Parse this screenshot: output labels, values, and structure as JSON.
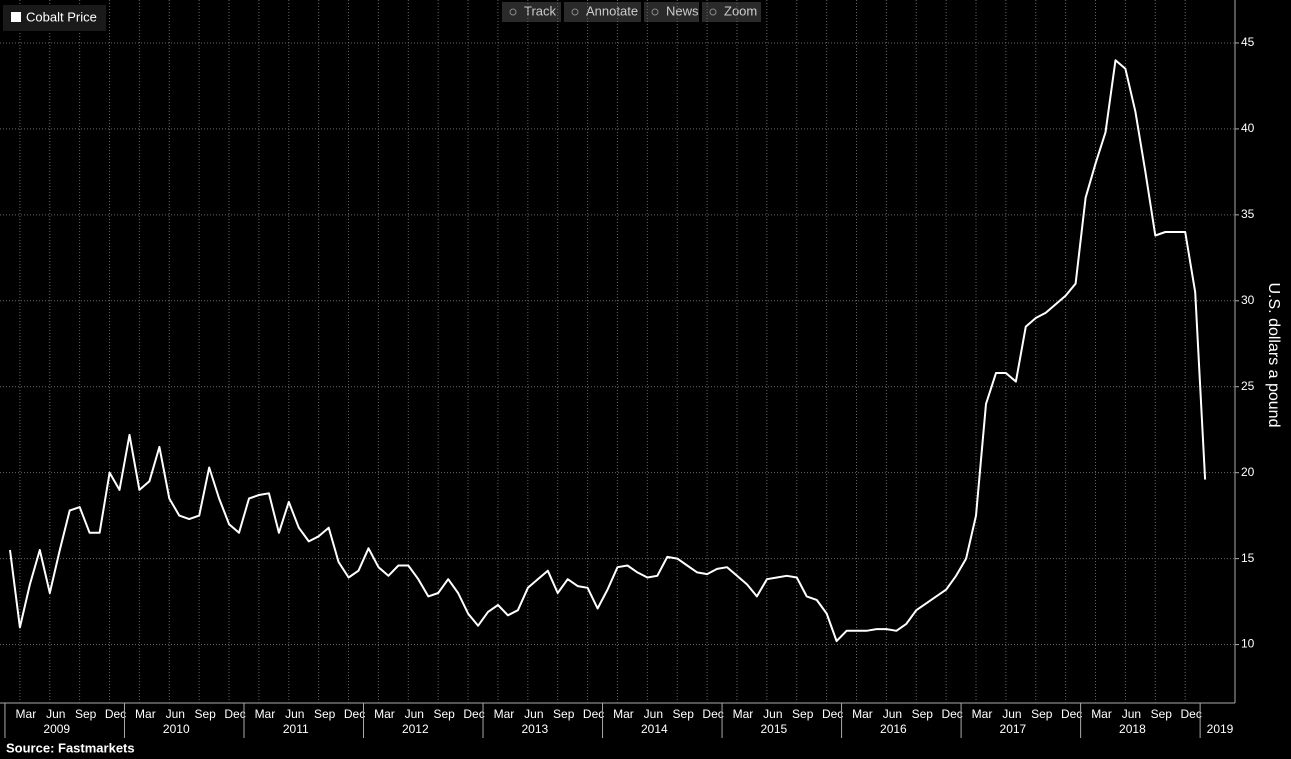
{
  "toolbar": [
    "Track",
    "Annotate",
    "News",
    "Zoom"
  ],
  "source": "Source:  Fastmarkets",
  "chart_data": {
    "type": "line",
    "y_label": "U.S. dollars a pound",
    "legend": "top-left",
    "grid": true,
    "series": [
      {
        "name": "Cobalt Price",
        "color": "#ffffff",
        "values": [
          15.5,
          11.0,
          13.5,
          15.5,
          13.0,
          15.5,
          17.8,
          18.0,
          16.5,
          16.5,
          20.0,
          19.0,
          22.2,
          19.0,
          19.5,
          21.5,
          18.5,
          17.5,
          17.3,
          17.5,
          20.3,
          18.5,
          17.0,
          16.5,
          18.5,
          18.7,
          18.8,
          16.5,
          18.3,
          16.8,
          16.0,
          16.3,
          16.8,
          14.8,
          13.9,
          14.3,
          15.6,
          14.5,
          14.0,
          14.6,
          14.6,
          13.8,
          12.8,
          13.0,
          13.8,
          13.0,
          11.8,
          11.1,
          11.9,
          12.3,
          11.7,
          12.0,
          13.3,
          13.8,
          14.3,
          13.0,
          13.8,
          13.4,
          13.3,
          12.1,
          13.2,
          14.5,
          14.6,
          14.2,
          13.9,
          14.0,
          15.1,
          15.0,
          14.6,
          14.2,
          14.1,
          14.4,
          14.5,
          14.0,
          13.5,
          12.8,
          13.8,
          13.9,
          14.0,
          13.9,
          12.8,
          12.6,
          11.8,
          10.2,
          10.8,
          10.8,
          10.8,
          10.9,
          10.9,
          10.8,
          11.2,
          12.0,
          12.4,
          12.8,
          13.2,
          14.0,
          15.0,
          17.5,
          24.0,
          25.8,
          25.8,
          25.3,
          28.5,
          29.0,
          29.3,
          29.8,
          30.3,
          31.0,
          36.0,
          38.0,
          39.8,
          44.0,
          43.5,
          41.0,
          37.5,
          33.8,
          34.0,
          34.0,
          34.0,
          30.5,
          19.6
        ]
      }
    ],
    "x": [
      "2009-01",
      "2009-02",
      "2009-03",
      "2009-04",
      "2009-05",
      "2009-06",
      "2009-07",
      "2009-08",
      "2009-09",
      "2009-10",
      "2009-11",
      "2009-12",
      "2010-01",
      "2010-02",
      "2010-03",
      "2010-04",
      "2010-05",
      "2010-06",
      "2010-07",
      "2010-08",
      "2010-09",
      "2010-10",
      "2010-11",
      "2010-12",
      "2011-01",
      "2011-02",
      "2011-03",
      "2011-04",
      "2011-05",
      "2011-06",
      "2011-07",
      "2011-08",
      "2011-09",
      "2011-10",
      "2011-11",
      "2011-12",
      "2012-01",
      "2012-02",
      "2012-03",
      "2012-04",
      "2012-05",
      "2012-06",
      "2012-07",
      "2012-08",
      "2012-09",
      "2012-10",
      "2012-11",
      "2012-12",
      "2013-01",
      "2013-02",
      "2013-03",
      "2013-04",
      "2013-05",
      "2013-06",
      "2013-07",
      "2013-08",
      "2013-09",
      "2013-10",
      "2013-11",
      "2013-12",
      "2014-01",
      "2014-02",
      "2014-03",
      "2014-04",
      "2014-05",
      "2014-06",
      "2014-07",
      "2014-08",
      "2014-09",
      "2014-10",
      "2014-11",
      "2014-12",
      "2015-01",
      "2015-02",
      "2015-03",
      "2015-04",
      "2015-05",
      "2015-06",
      "2015-07",
      "2015-08",
      "2015-09",
      "2015-10",
      "2015-11",
      "2015-12",
      "2016-01",
      "2016-02",
      "2016-03",
      "2016-04",
      "2016-05",
      "2016-06",
      "2016-07",
      "2016-08",
      "2016-09",
      "2016-10",
      "2016-11",
      "2016-12",
      "2017-01",
      "2017-02",
      "2017-03",
      "2017-04",
      "2017-05",
      "2017-06",
      "2017-07",
      "2017-08",
      "2017-09",
      "2017-10",
      "2017-11",
      "2017-12",
      "2018-01",
      "2018-02",
      "2018-03",
      "2018-04",
      "2018-05",
      "2018-06",
      "2018-07",
      "2018-08",
      "2018-09",
      "2018-10",
      "2018-11",
      "2018-12",
      "2019-01"
    ],
    "xlim": [
      "2008-12",
      "2019-04"
    ],
    "ylim": [
      6.6,
      47.5
    ],
    "yticks": [
      10,
      15,
      20,
      25,
      30,
      35,
      40,
      45
    ],
    "xticks": [
      {
        "value": "2009-03",
        "label": "Mar"
      },
      {
        "value": "2009-06",
        "label": "Jun"
      },
      {
        "value": "2009-09",
        "label": "Sep"
      },
      {
        "value": "2009-12",
        "label": "Dec"
      },
      {
        "value": "2010-03",
        "label": "Mar"
      },
      {
        "value": "2010-06",
        "label": "Jun"
      },
      {
        "value": "2010-09",
        "label": "Sep"
      },
      {
        "value": "2010-12",
        "label": "Dec"
      },
      {
        "value": "2011-03",
        "label": "Mar"
      },
      {
        "value": "2011-06",
        "label": "Jun"
      },
      {
        "value": "2011-09",
        "label": "Sep"
      },
      {
        "value": "2011-12",
        "label": "Dec"
      },
      {
        "value": "2012-03",
        "label": "Mar"
      },
      {
        "value": "2012-06",
        "label": "Jun"
      },
      {
        "value": "2012-09",
        "label": "Sep"
      },
      {
        "value": "2012-12",
        "label": "Dec"
      },
      {
        "value": "2013-03",
        "label": "Mar"
      },
      {
        "value": "2013-06",
        "label": "Jun"
      },
      {
        "value": "2013-09",
        "label": "Sep"
      },
      {
        "value": "2013-12",
        "label": "Dec"
      },
      {
        "value": "2014-03",
        "label": "Mar"
      },
      {
        "value": "2014-06",
        "label": "Jun"
      },
      {
        "value": "2014-09",
        "label": "Sep"
      },
      {
        "value": "2014-12",
        "label": "Dec"
      },
      {
        "value": "2015-03",
        "label": "Mar"
      },
      {
        "value": "2015-06",
        "label": "Jun"
      },
      {
        "value": "2015-09",
        "label": "Sep"
      },
      {
        "value": "2015-12",
        "label": "Dec"
      },
      {
        "value": "2016-03",
        "label": "Mar"
      },
      {
        "value": "2016-06",
        "label": "Jun"
      },
      {
        "value": "2016-09",
        "label": "Sep"
      },
      {
        "value": "2016-12",
        "label": "Dec"
      },
      {
        "value": "2017-03",
        "label": "Mar"
      },
      {
        "value": "2017-06",
        "label": "Jun"
      },
      {
        "value": "2017-09",
        "label": "Sep"
      },
      {
        "value": "2017-12",
        "label": "Dec"
      },
      {
        "value": "2018-03",
        "label": "Mar"
      },
      {
        "value": "2018-06",
        "label": "Jun"
      },
      {
        "value": "2018-09",
        "label": "Sep"
      },
      {
        "value": "2018-12",
        "label": "Dec"
      }
    ],
    "year_labels": [
      "2009",
      "2010",
      "2011",
      "2012",
      "2013",
      "2014",
      "2015",
      "2016",
      "2017",
      "2018",
      "2019"
    ]
  }
}
